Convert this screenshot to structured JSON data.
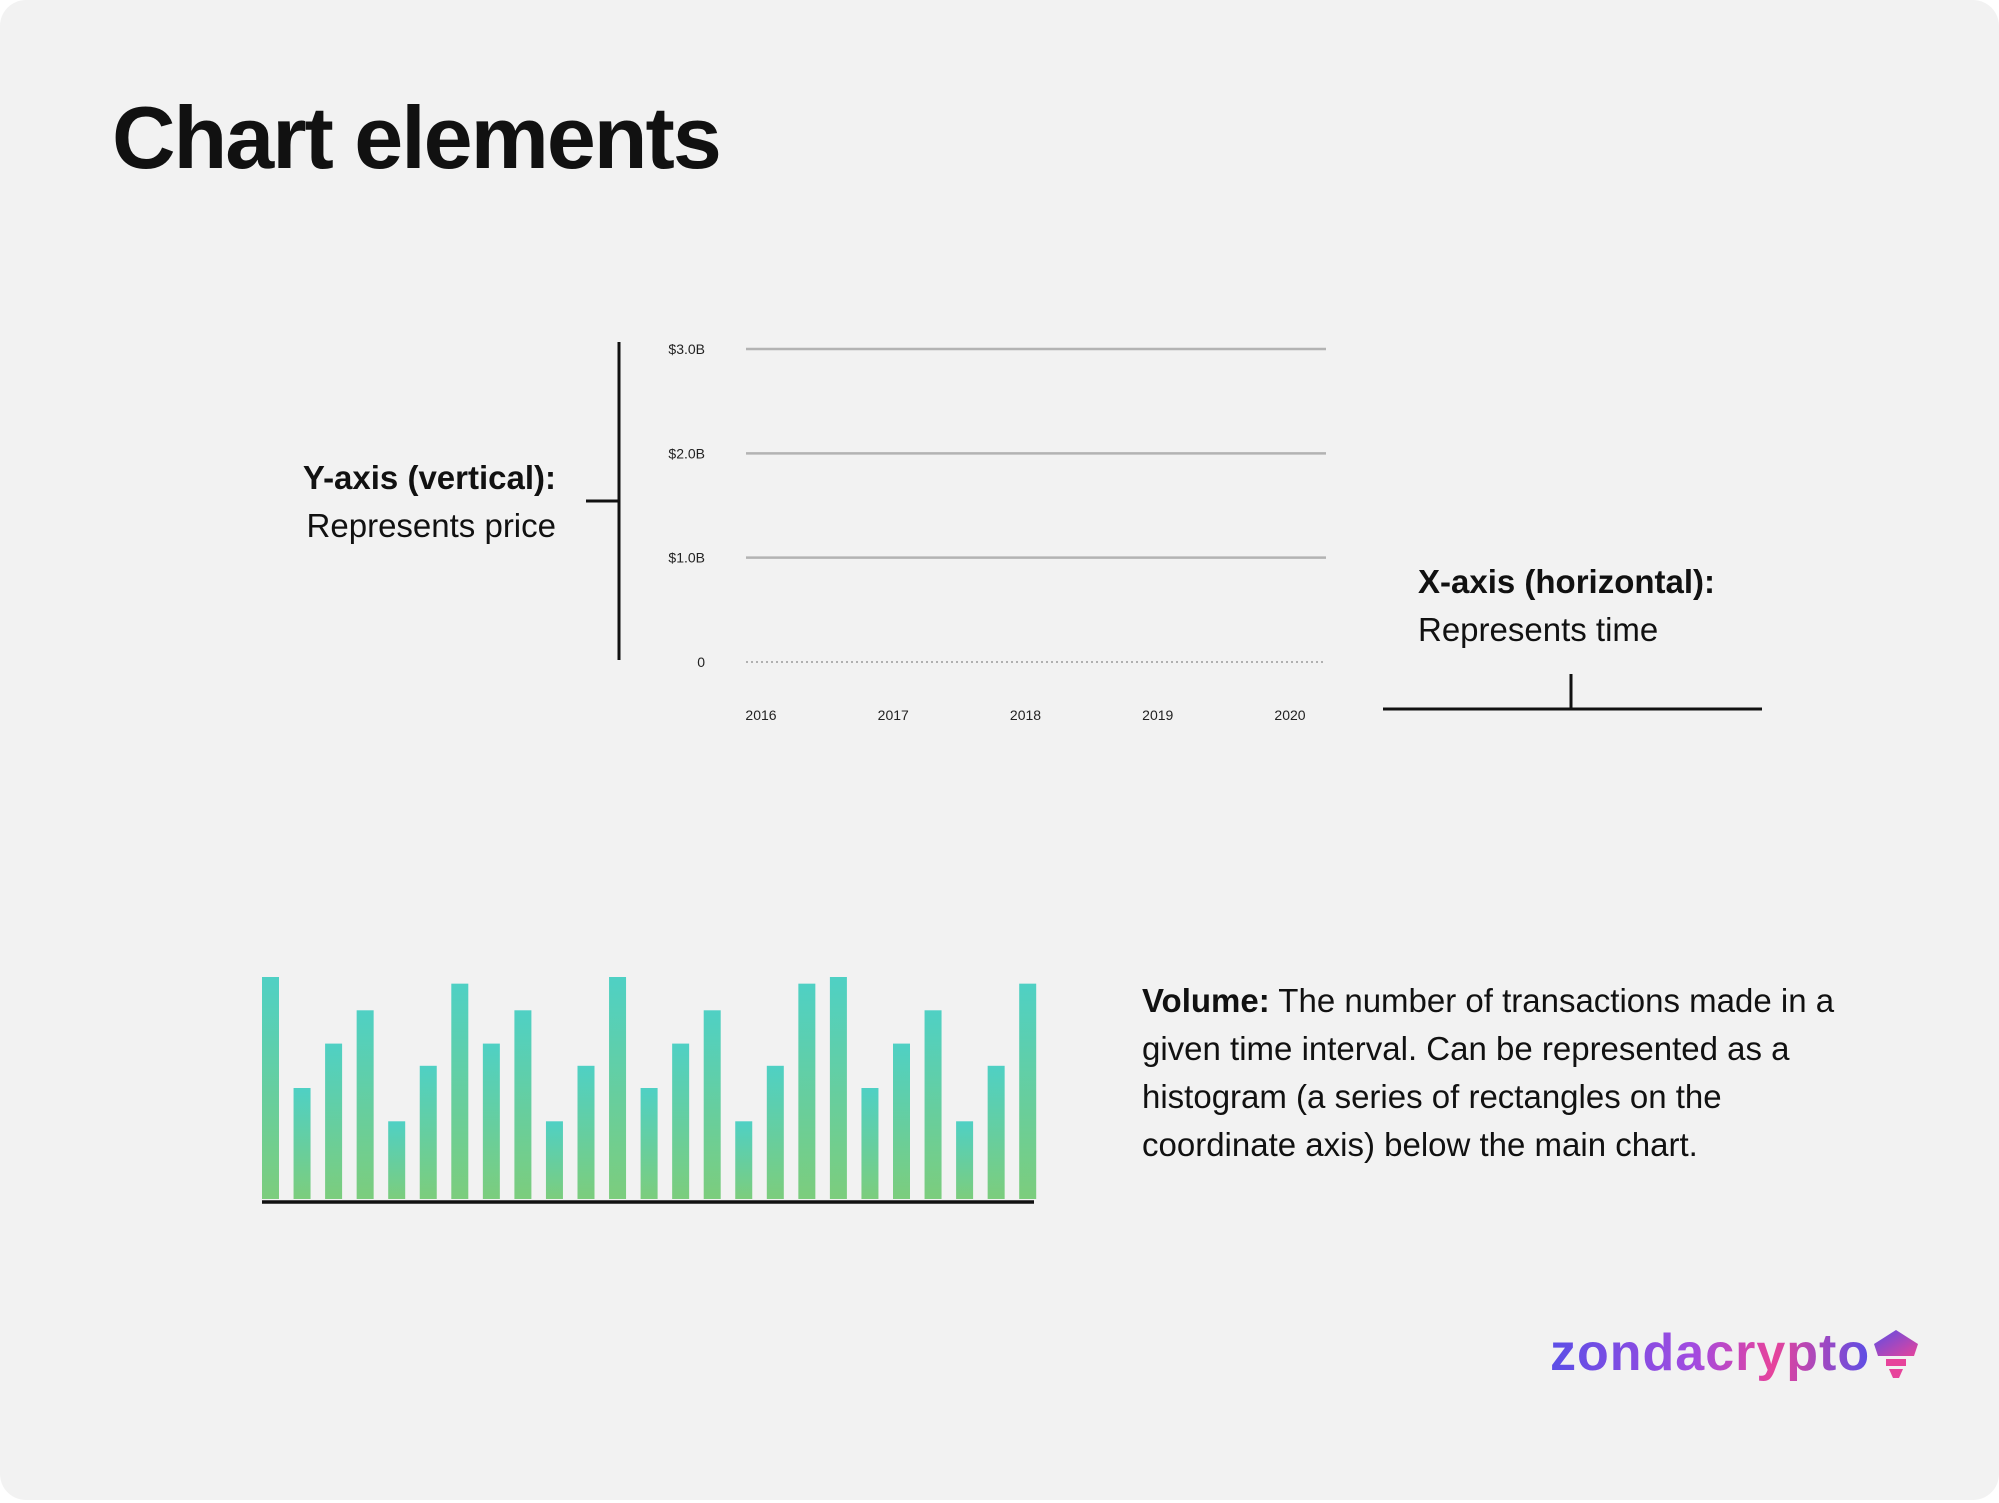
{
  "title": "Chart elements",
  "y_axis_annotation": {
    "heading": "Y-axis (vertical):",
    "description": "Represents price"
  },
  "x_axis_annotation": {
    "heading": "X-axis (horizontal):",
    "description": "Represents time"
  },
  "volume_annotation": {
    "heading": "Volume:",
    "description": " The number of transactions made in a given time interval. Can be represented as a histogram (a series of rectangles on the coordinate axis) below the main chart."
  },
  "logo": {
    "text": "zondacrypto",
    "icon": "lighthouse-icon",
    "colors": [
      "#5b4ee6",
      "#a24be0",
      "#e7439b"
    ]
  },
  "colors": {
    "background": "#f2f2f2",
    "gridline": "#b3b3b3",
    "axis": "#111111",
    "bar_top": "#4fd0c4",
    "bar_bottom": "#7ccd7d"
  },
  "chart_data": [
    {
      "type": "line",
      "title": "",
      "xlabel": "",
      "ylabel": "",
      "x_ticks": [
        "2016",
        "2017",
        "2018",
        "2019",
        "2020"
      ],
      "y_ticks": [
        {
          "value": 0,
          "label": "0"
        },
        {
          "value": 1.0,
          "label": "$1.0B"
        },
        {
          "value": 2.0,
          "label": "$2.0B"
        },
        {
          "value": 3.0,
          "label": "$3.0B"
        }
      ],
      "ylim": [
        0,
        3.0
      ],
      "grid": true,
      "series": []
    },
    {
      "type": "bar",
      "title": "",
      "values": [
        10,
        5,
        7,
        8.5,
        3.5,
        6,
        9.7,
        7,
        8.5,
        3.5,
        6,
        10,
        5,
        7,
        8.5,
        3.5,
        6,
        9.7,
        10,
        5,
        7,
        8.5,
        3.5,
        6,
        9.7
      ],
      "ylim": [
        0,
        10
      ]
    }
  ]
}
